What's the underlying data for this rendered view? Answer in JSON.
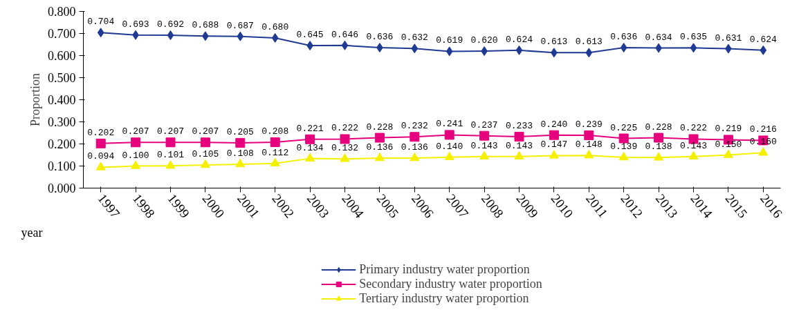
{
  "chart_data": {
    "type": "line",
    "xlabel": "year",
    "ylabel": "Proportion",
    "categories": [
      "1997",
      "1998",
      "1999",
      "2000",
      "2001",
      "2002",
      "2003",
      "2004",
      "2005",
      "2006",
      "2007",
      "2008",
      "2009",
      "2010",
      "2011",
      "2012",
      "2013",
      "2014",
      "2015",
      "2016"
    ],
    "series": [
      {
        "name": "Primary industry water proportion",
        "color": "#1f3a93",
        "marker": "diamond",
        "value_labels": [
          "0.704",
          "0.693",
          "0.692",
          "0.688",
          "0.687",
          "0.680",
          "0.645",
          "0.646",
          "0.636",
          "0.632",
          "0.619",
          "0.620",
          "0.624",
          "0.613",
          "0.613",
          "0.636",
          "0.634",
          "0.635",
          "0.631",
          "0.624"
        ],
        "values": [
          0.704,
          0.693,
          0.692,
          0.688,
          0.687,
          0.68,
          0.645,
          0.646,
          0.636,
          0.632,
          0.619,
          0.62,
          0.624,
          0.613,
          0.613,
          0.636,
          0.634,
          0.635,
          0.631,
          0.624
        ]
      },
      {
        "name": "Secondary industry water proportion",
        "color": "#e6007e",
        "marker": "square",
        "value_labels": [
          "0.202",
          "0.207",
          "0.207",
          "0.207",
          "0.205",
          "0.208",
          "0.221",
          "0.222",
          "0.228",
          "0.232",
          "0.241",
          "0.237",
          "0.233",
          "0.240",
          "0.239",
          "0.225",
          "0.228",
          "0.222",
          "0.219",
          "0.216"
        ],
        "values": [
          0.202,
          0.207,
          0.207,
          0.207,
          0.205,
          0.208,
          0.221,
          0.222,
          0.228,
          0.232,
          0.241,
          0.237,
          0.233,
          0.24,
          0.239,
          0.225,
          0.228,
          0.222,
          0.219,
          0.216
        ]
      },
      {
        "name": "Tertiary industry water proportion",
        "color": "#f5f000",
        "marker": "triangle",
        "value_labels": [
          "0.094",
          "0.100",
          "0.101",
          "0.105",
          "0.108",
          "0.112",
          "0.134",
          "0.132",
          "0.136",
          "0.136",
          "0.140",
          "0.143",
          "0.143",
          "0.147",
          "0.148",
          "0.139",
          "0.138",
          "0.143",
          "0.150",
          "0.160"
        ],
        "values": [
          0.094,
          0.1,
          0.101,
          0.105,
          0.108,
          0.112,
          0.134,
          0.132,
          0.136,
          0.136,
          0.14,
          0.143,
          0.143,
          0.147,
          0.148,
          0.139,
          0.138,
          0.143,
          0.15,
          0.16
        ]
      }
    ],
    "ylim": [
      0,
      0.8
    ],
    "yticks": [
      {
        "value": 0,
        "label": "0.000"
      },
      {
        "value": 0.1,
        "label": "0.100"
      },
      {
        "value": 0.2,
        "label": "0.200"
      },
      {
        "value": 0.3,
        "label": "0.300"
      },
      {
        "value": 0.4,
        "label": "0.400"
      },
      {
        "value": 0.5,
        "label": "0.500"
      },
      {
        "value": 0.6,
        "label": "0.600"
      },
      {
        "value": 0.7,
        "label": "0.700"
      },
      {
        "value": 0.8,
        "label": "0.800"
      }
    ],
    "grid": false,
    "legend": "bottom",
    "line_style": "solid"
  }
}
